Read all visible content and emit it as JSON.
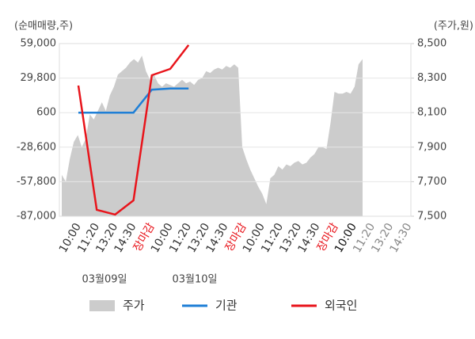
{
  "chart_data": {
    "type": "combo",
    "y_axis_title": "(순매매량,주)",
    "y2_axis_title": "(주가,원)",
    "categories": [
      "10:00",
      "11:20",
      "13:20",
      "14:30",
      "장마감",
      "10:00",
      "11:20",
      "13:20",
      "14:30",
      "장마감",
      "10:00",
      "11:20",
      "13:20",
      "14:30",
      "장마감",
      "10:00",
      "11:20",
      "13:20",
      "14:30"
    ],
    "category_colors": [
      "#333333",
      "#333333",
      "#333333",
      "#333333",
      "#e8141b",
      "#333333",
      "#333333",
      "#333333",
      "#333333",
      "#e8141b",
      "#333333",
      "#333333",
      "#333333",
      "#333333",
      "#e8141b",
      "#111111",
      "#888888",
      "#888888",
      "#888888"
    ],
    "date_labels": [
      "03월09일",
      "03월10일"
    ],
    "ylim": [
      -87000,
      59000
    ],
    "yticks": [
      {
        "value": 59000,
        "label": "59,000"
      },
      {
        "value": 29800,
        "label": "29,800"
      },
      600,
      {
        "value": -28600,
        "label": "-28,600"
      },
      {
        "value": -57800,
        "label": "-57,800"
      },
      {
        "value": -87000,
        "label": "-87,000"
      }
    ],
    "y2lim": [
      7500,
      8500
    ],
    "y2ticks": [
      {
        "value": 8500,
        "label": "8,500"
      },
      {
        "value": 8300,
        "label": "8,300"
      },
      {
        "value": 8100,
        "label": "8,100"
      },
      {
        "value": 7900,
        "label": "7,900"
      },
      {
        "value": 7700,
        "label": "7,700"
      },
      {
        "value": 7500,
        "label": "7,500"
      }
    ],
    "grid": true,
    "legend": "bottom",
    "price_series": {
      "name": "주가",
      "color": "#cccccc",
      "axis": "y2",
      "values": [
        7740,
        7700,
        7830,
        7930,
        7970,
        7900,
        7950,
        8090,
        8060,
        8110,
        8160,
        8110,
        8200,
        8250,
        8320,
        8340,
        8360,
        8390,
        8410,
        8390,
        8430,
        8340,
        8290,
        8320,
        8270,
        8250,
        8270,
        8260,
        8250,
        8270,
        8290,
        8270,
        8280,
        8260,
        8290,
        8300,
        8340,
        8330,
        8350,
        8360,
        8350,
        8370,
        8360,
        8380,
        8360,
        7900,
        7830,
        7770,
        7720,
        7670,
        7630,
        7570,
        7720,
        7740,
        7790,
        7770,
        7800,
        7790,
        7810,
        7820,
        7800,
        7810,
        7840,
        7860,
        7900,
        7900,
        7890,
        8040,
        8220,
        8210,
        8210,
        8220,
        8210,
        8250,
        8380,
        8410
      ]
    },
    "series": [
      {
        "name": "기관",
        "color": "#1f7fd6",
        "values": [
          600,
          600,
          600,
          600,
          20000,
          21000,
          21000,
          null,
          null,
          null,
          null,
          null,
          null,
          null,
          null,
          null,
          null,
          null,
          null
        ]
      },
      {
        "name": "외국인",
        "color": "#e8141b",
        "values": [
          23500,
          -81600,
          -85600,
          -73600,
          32200,
          37600,
          57700,
          null,
          null,
          null,
          null,
          null,
          null,
          null,
          null,
          null,
          null,
          null,
          null
        ]
      }
    ]
  }
}
